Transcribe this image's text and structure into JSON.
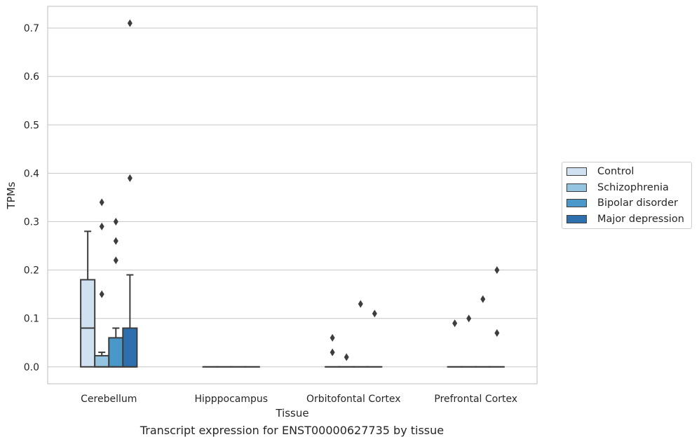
{
  "chart_data": {
    "type": "box",
    "xlabel": "Tissue",
    "ylabel": "TPMs",
    "caption": "Transcript expression for ENST00000627735 by tissue",
    "ylim": [
      -0.035,
      0.745
    ],
    "yticks": [
      0.0,
      0.1,
      0.2,
      0.3,
      0.4,
      0.5,
      0.6,
      0.7
    ],
    "ytick_labels": [
      "0.0",
      "0.1",
      "0.2",
      "0.3",
      "0.4",
      "0.5",
      "0.6",
      "0.7"
    ],
    "grid": "horizontal",
    "legend_position": "right",
    "categories": [
      "Cerebellum",
      "Hipppocampus",
      "Orbitofontal Cortex",
      "Prefrontal Cortex"
    ],
    "series": [
      {
        "name": "Control",
        "color": "#d0e1f2",
        "boxes": [
          {
            "q1": 0.0,
            "median": 0.08,
            "q3": 0.18,
            "whisker_low": 0.0,
            "whisker_high": 0.28,
            "outliers": []
          },
          {
            "q1": 0.0,
            "median": 0.0,
            "q3": 0.0,
            "whisker_low": 0.0,
            "whisker_high": 0.0,
            "outliers": []
          },
          {
            "q1": 0.0,
            "median": 0.0,
            "q3": 0.0,
            "whisker_low": 0.0,
            "whisker_high": 0.0,
            "outliers": [
              0.06,
              0.03
            ]
          },
          {
            "q1": 0.0,
            "median": 0.0,
            "q3": 0.0,
            "whisker_low": 0.0,
            "whisker_high": 0.0,
            "outliers": [
              0.09
            ]
          }
        ]
      },
      {
        "name": "Schizophrenia",
        "color": "#94c4df",
        "boxes": [
          {
            "q1": 0.0,
            "median": 0.0,
            "q3": 0.023,
            "whisker_low": 0.0,
            "whisker_high": 0.03,
            "outliers": [
              0.34,
              0.29,
              0.15
            ]
          },
          {
            "q1": 0.0,
            "median": 0.0,
            "q3": 0.0,
            "whisker_low": 0.0,
            "whisker_high": 0.0,
            "outliers": []
          },
          {
            "q1": 0.0,
            "median": 0.0,
            "q3": 0.0,
            "whisker_low": 0.0,
            "whisker_high": 0.0,
            "outliers": [
              0.02
            ]
          },
          {
            "q1": 0.0,
            "median": 0.0,
            "q3": 0.0,
            "whisker_low": 0.0,
            "whisker_high": 0.0,
            "outliers": [
              0.1
            ]
          }
        ]
      },
      {
        "name": "Bipolar disorder",
        "color": "#4a98c9",
        "boxes": [
          {
            "q1": 0.0,
            "median": 0.0,
            "q3": 0.06,
            "whisker_low": 0.0,
            "whisker_high": 0.08,
            "outliers": [
              0.3,
              0.26,
              0.22
            ]
          },
          {
            "q1": 0.0,
            "median": 0.0,
            "q3": 0.0,
            "whisker_low": 0.0,
            "whisker_high": 0.0,
            "outliers": []
          },
          {
            "q1": 0.0,
            "median": 0.0,
            "q3": 0.0,
            "whisker_low": 0.0,
            "whisker_high": 0.0,
            "outliers": [
              0.13
            ]
          },
          {
            "q1": 0.0,
            "median": 0.0,
            "q3": 0.0,
            "whisker_low": 0.0,
            "whisker_high": 0.0,
            "outliers": [
              0.14
            ]
          }
        ]
      },
      {
        "name": "Major depression",
        "color": "#2e6fae",
        "boxes": [
          {
            "q1": 0.0,
            "median": 0.0,
            "q3": 0.08,
            "whisker_low": 0.0,
            "whisker_high": 0.19,
            "outliers": [
              0.71,
              0.39
            ]
          },
          {
            "q1": 0.0,
            "median": 0.0,
            "q3": 0.0,
            "whisker_low": 0.0,
            "whisker_high": 0.0,
            "outliers": []
          },
          {
            "q1": 0.0,
            "median": 0.0,
            "q3": 0.0,
            "whisker_low": 0.0,
            "whisker_high": 0.0,
            "outliers": [
              0.11
            ]
          },
          {
            "q1": 0.0,
            "median": 0.0,
            "q3": 0.0,
            "whisker_low": 0.0,
            "whisker_high": 0.0,
            "outliers": [
              0.2,
              0.07
            ]
          }
        ]
      }
    ]
  }
}
